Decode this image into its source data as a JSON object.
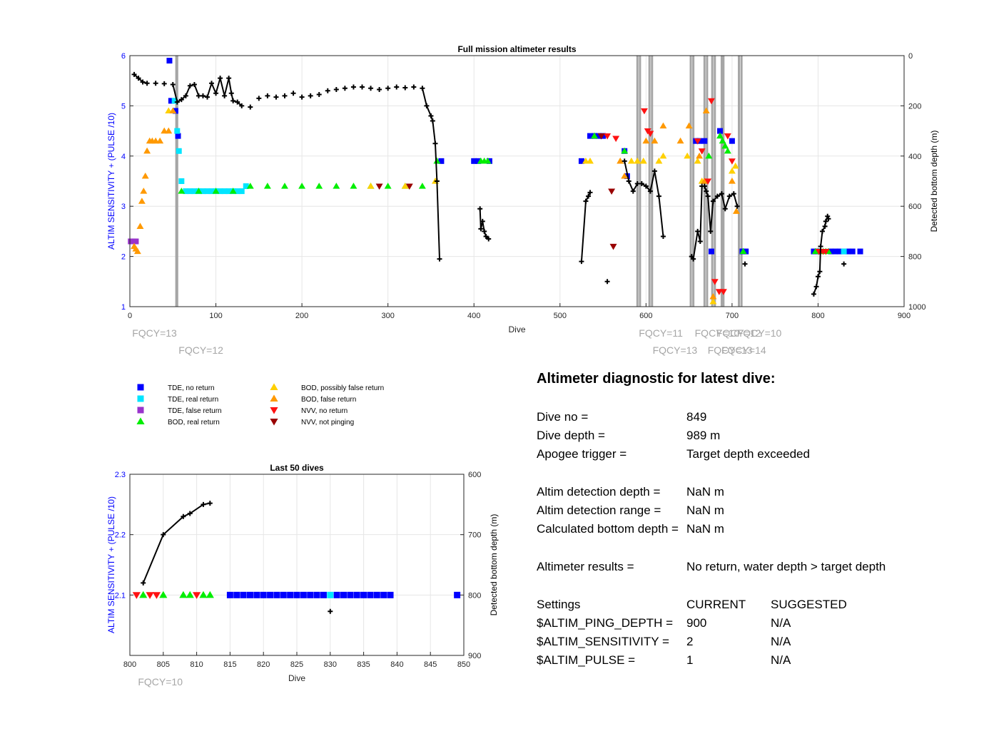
{
  "chart_data": [
    {
      "type": "scatter",
      "title": "Full mission altimeter results",
      "xlabel": "Dive",
      "ylabel": "ALTIM SENSITIVITY + (PULSE /10)",
      "y2label": "Detected bottom depth (m)",
      "xlim": [
        0,
        900
      ],
      "ylim": [
        1,
        6
      ],
      "y2lim": [
        1000,
        0
      ],
      "xticks": [
        0,
        100,
        200,
        300,
        400,
        500,
        600,
        700,
        800,
        900
      ],
      "yticks": [
        1,
        2,
        3,
        4,
        5,
        6
      ],
      "y2ticks": [
        0,
        200,
        400,
        600,
        800,
        1000
      ],
      "grid": true,
      "fqcy_lines": [
        54,
        55,
        590,
        593,
        604,
        607,
        652,
        655,
        668,
        671,
        677,
        680,
        688,
        690,
        708,
        711
      ],
      "fqcy_labels": [
        {
          "dive": 1,
          "row": 1,
          "text": "FQCY=13"
        },
        {
          "dive": 55,
          "row": 2,
          "text": "FQCY=12"
        },
        {
          "dive": 590,
          "row": 1,
          "text": "FQCY=11"
        },
        {
          "dive": 606,
          "row": 2,
          "text": "FQCY=13"
        },
        {
          "dive": 655,
          "row": 1,
          "text": "FQCY=10"
        },
        {
          "dive": 670,
          "row": 2,
          "text": "FQCY=13"
        },
        {
          "dive": 680,
          "row": 1,
          "text": "FQCY=12"
        },
        {
          "dive": 686,
          "row": 2,
          "text": "FQCY=14"
        },
        {
          "dive": 704,
          "row": 1,
          "text": "FQCY=10"
        }
      ],
      "series": [
        {
          "name": "TDE, no return",
          "marker": "square",
          "color": "#0000ff",
          "x": [
            46,
            48,
            53,
            56,
            362,
            400,
            405,
            418,
            525,
            535,
            540,
            545,
            550,
            575,
            578,
            658,
            662,
            668,
            676,
            686,
            700,
            712,
            716,
            795,
            800,
            815,
            820,
            825,
            830,
            835,
            840,
            849
          ],
          "y": [
            5.9,
            5.1,
            4.9,
            4.4,
            3.9,
            3.9,
            3.9,
            3.9,
            3.9,
            4.4,
            4.4,
            4.4,
            4.4,
            4.1,
            3.6,
            4.3,
            4.3,
            4.3,
            2.1,
            4.5,
            4.3,
            2.1,
            2.1,
            2.1,
            2.1,
            2.1,
            2.1,
            2.1,
            2.1,
            2.1,
            2.1,
            2.1
          ]
        },
        {
          "name": "TDE, real return",
          "marker": "square",
          "color": "#00e5ff",
          "x": [
            52,
            55,
            57,
            60,
            65,
            70,
            75,
            80,
            85,
            90,
            95,
            100,
            105,
            110,
            115,
            120,
            125,
            130,
            135,
            830
          ],
          "y": [
            5.1,
            4.5,
            4.1,
            3.5,
            3.3,
            3.3,
            3.3,
            3.3,
            3.3,
            3.3,
            3.3,
            3.3,
            3.3,
            3.3,
            3.3,
            3.3,
            3.3,
            3.3,
            3.4,
            2.1
          ]
        },
        {
          "name": "TDE, false return",
          "marker": "square",
          "color": "#9933cc",
          "x": [
            1,
            3,
            5,
            7
          ],
          "y": [
            2.3,
            2.3,
            2.3,
            2.3
          ]
        },
        {
          "name": "BOD, real return",
          "marker": "triangle-up",
          "color": "#00ee00",
          "x": [
            60,
            80,
            100,
            120,
            140,
            160,
            180,
            200,
            220,
            240,
            260,
            280,
            300,
            320,
            340,
            357,
            408,
            412,
            416,
            540,
            575,
            673,
            686,
            689,
            692,
            695,
            713,
            797,
            800,
            803,
            806,
            809,
            812
          ],
          "y": [
            3.3,
            3.3,
            3.3,
            3.3,
            3.4,
            3.4,
            3.4,
            3.4,
            3.4,
            3.4,
            3.4,
            3.4,
            3.4,
            3.4,
            3.4,
            3.9,
            3.9,
            3.9,
            3.9,
            4.4,
            4.1,
            4.0,
            4.4,
            4.3,
            4.2,
            4.1,
            2.1,
            2.1,
            2.1,
            2.1,
            2.1,
            2.1,
            2.1
          ]
        },
        {
          "name": "BOD, possibly false return",
          "marker": "triangle-up",
          "color": "#ffd000",
          "x": [
            45,
            280,
            320,
            355,
            530,
            535,
            583,
            590,
            597,
            615,
            620,
            648,
            660,
            665,
            678,
            700,
            704
          ],
          "y": [
            4.9,
            3.4,
            3.4,
            3.5,
            3.9,
            3.9,
            3.9,
            3.9,
            3.9,
            3.9,
            4.0,
            4.0,
            3.9,
            3.5,
            1.1,
            3.7,
            3.8
          ]
        },
        {
          "name": "BOD, false return",
          "marker": "triangle-up",
          "color": "#ff9900",
          "x": [
            5,
            7,
            9,
            12,
            14,
            16,
            18,
            20,
            23,
            26,
            30,
            35,
            40,
            45,
            50,
            570,
            575,
            600,
            610,
            620,
            640,
            650,
            662,
            668,
            670,
            678,
            700,
            705
          ],
          "y": [
            2.2,
            2.15,
            2.1,
            2.6,
            3.1,
            3.3,
            3.6,
            4.1,
            4.3,
            4.3,
            4.3,
            4.3,
            4.5,
            4.5,
            4.9,
            3.9,
            3.6,
            4.3,
            4.3,
            4.6,
            4.3,
            4.6,
            4.0,
            3.5,
            4.9,
            1.2,
            3.5,
            2.9
          ]
        },
        {
          "name": "NVV, no return",
          "marker": "triangle-down",
          "color": "#ff1111",
          "x": [
            555,
            565,
            598,
            602,
            605,
            660,
            665,
            672,
            676,
            680,
            685,
            690,
            695,
            700,
            801,
            803,
            806,
            809
          ],
          "y": [
            4.4,
            4.35,
            4.9,
            4.5,
            4.45,
            4.3,
            4.1,
            3.5,
            5.1,
            1.5,
            1.3,
            1.3,
            4.4,
            3.9,
            2.1,
            2.1,
            2.1,
            2.1
          ]
        },
        {
          "name": "NVV, not pinging",
          "marker": "triangle-down",
          "color": "#990000",
          "x": [
            290,
            325,
            548,
            560,
            562
          ],
          "y": [
            3.4,
            3.4,
            4.4,
            3.3,
            2.2
          ]
        },
        {
          "name": "Detected bottom depth",
          "marker": "plus",
          "color": "#000000",
          "axis": "right",
          "x": [
            5,
            10,
            15,
            20,
            30,
            40,
            50,
            55,
            60,
            65,
            70,
            75,
            80,
            85,
            90,
            95,
            100,
            105,
            110,
            115,
            118,
            120,
            125,
            130,
            140,
            150,
            160,
            170,
            180,
            190,
            200,
            210,
            220,
            230,
            240,
            250,
            260,
            270,
            280,
            290,
            300,
            310,
            320,
            330,
            340,
            345,
            350,
            352,
            355,
            357,
            360,
            407,
            408,
            410,
            412,
            414,
            417,
            525,
            530,
            533,
            535,
            555,
            575,
            580,
            585,
            590,
            595,
            600,
            605,
            610,
            615,
            620,
            653,
            655,
            660,
            663,
            665,
            668,
            670,
            672,
            675,
            678,
            683,
            688,
            692,
            697,
            702,
            706,
            715,
            795,
            798,
            800,
            802,
            803,
            805,
            808,
            809,
            811,
            812,
            830
          ],
          "y": [
            75,
            90,
            105,
            110,
            110,
            112,
            115,
            185,
            175,
            160,
            120,
            115,
            160,
            160,
            165,
            110,
            150,
            90,
            160,
            90,
            150,
            180,
            185,
            200,
            205,
            170,
            160,
            165,
            160,
            150,
            165,
            160,
            155,
            140,
            135,
            130,
            125,
            125,
            130,
            135,
            130,
            125,
            128,
            125,
            130,
            200,
            240,
            260,
            350,
            500,
            810,
            610,
            690,
            660,
            700,
            720,
            730,
            820,
            580,
            560,
            545,
            900,
            420,
            500,
            540,
            510,
            510,
            520,
            540,
            460,
            560,
            720,
            800,
            810,
            700,
            740,
            520,
            520,
            540,
            560,
            700,
            580,
            560,
            550,
            610,
            560,
            550,
            600,
            830,
            950,
            920,
            880,
            860,
            760,
            700,
            680,
            660,
            640,
            650,
            830
          ]
        }
      ]
    },
    {
      "type": "scatter",
      "title": "Last 50 dives",
      "xlabel": "Dive",
      "ylabel": "ALTIM SENSITIVITY + (PULSE /10)",
      "y2label": "Detected bottom depth (m)",
      "xlim": [
        800,
        850
      ],
      "ylim": [
        2.0,
        2.3
      ],
      "y2lim": [
        900,
        600
      ],
      "xticks": [
        800,
        805,
        810,
        815,
        820,
        825,
        830,
        835,
        840,
        845,
        850
      ],
      "yticks": [
        2.1,
        2.2,
        2.3
      ],
      "y2ticks": [
        600,
        700,
        800,
        900
      ],
      "grid": true,
      "fqcy_labels": [
        {
          "dive": 801,
          "row": 1,
          "text": "FQCY=10"
        }
      ],
      "series": [
        {
          "name": "TDE, no return",
          "marker": "square",
          "color": "#0000ff",
          "x": [
            815,
            816,
            817,
            818,
            819,
            820,
            821,
            822,
            823,
            824,
            825,
            826,
            827,
            828,
            829,
            831,
            832,
            833,
            834,
            835,
            836,
            837,
            838,
            839,
            849
          ],
          "y": [
            2.1,
            2.1,
            2.1,
            2.1,
            2.1,
            2.1,
            2.1,
            2.1,
            2.1,
            2.1,
            2.1,
            2.1,
            2.1,
            2.1,
            2.1,
            2.1,
            2.1,
            2.1,
            2.1,
            2.1,
            2.1,
            2.1,
            2.1,
            2.1,
            2.1
          ]
        },
        {
          "name": "TDE, real return",
          "marker": "square",
          "color": "#00e5ff",
          "x": [
            830
          ],
          "y": [
            2.1
          ]
        },
        {
          "name": "BOD, real return",
          "marker": "triangle-up",
          "color": "#00ee00",
          "x": [
            802,
            805,
            808,
            809,
            811,
            812
          ],
          "y": [
            2.1,
            2.1,
            2.1,
            2.1,
            2.1,
            2.1
          ]
        },
        {
          "name": "NVV, no return",
          "marker": "triangle-down",
          "color": "#ff1111",
          "x": [
            801,
            803,
            804,
            810
          ],
          "y": [
            2.1,
            2.1,
            2.1,
            2.1
          ]
        },
        {
          "name": "Detected bottom depth",
          "marker": "plus",
          "color": "#000000",
          "axis": "right",
          "x": [
            802,
            805,
            808,
            809,
            811,
            812,
            830
          ],
          "y": [
            780,
            700,
            670,
            665,
            650,
            648,
            827
          ]
        }
      ]
    }
  ],
  "legend": {
    "entries": [
      {
        "label": "TDE, no return",
        "marker": "square",
        "color": "#0000ff"
      },
      {
        "label": "TDE, real return",
        "marker": "square",
        "color": "#00e5ff"
      },
      {
        "label": "TDE, false return",
        "marker": "square",
        "color": "#9933cc"
      },
      {
        "label": "BOD, real return",
        "marker": "triangle-up",
        "color": "#00ee00"
      },
      {
        "label": "BOD, possibly false return",
        "marker": "triangle-up",
        "color": "#ffd000"
      },
      {
        "label": "BOD, false return",
        "marker": "triangle-up",
        "color": "#ff9900"
      },
      {
        "label": "NVV, no return",
        "marker": "triangle-down",
        "color": "#ff1111"
      },
      {
        "label": "NVV, not pinging",
        "marker": "triangle-down",
        "color": "#990000"
      }
    ]
  },
  "diagnostic": {
    "title": "Altimeter diagnostic for latest dive:",
    "dive_no_label": "Dive no =",
    "dive_no": "849",
    "dive_depth_label": "Dive depth =",
    "dive_depth": "989 m",
    "apogee_label": "Apogee trigger =",
    "apogee": "Target depth exceeded",
    "detect_depth_label": "Altim detection depth =",
    "detect_depth": "NaN m",
    "detect_range_label": "Altim detection range =",
    "detect_range": "NaN m",
    "calc_bottom_label": "Calculated bottom depth =",
    "calc_bottom": "NaN m",
    "results_label": "Altimeter results =",
    "results": "No return, water depth > target depth",
    "settings_label": "Settings",
    "current_label": "CURRENT",
    "suggested_label": "SUGGESTED",
    "ping_depth_label": "$ALTIM_PING_DEPTH =",
    "ping_depth_current": "900",
    "ping_depth_suggested": "N/A",
    "sensitivity_label": "$ALTIM_SENSITIVITY =",
    "sensitivity_current": "2",
    "sensitivity_suggested": "N/A",
    "pulse_label": "$ALTIM_PULSE =",
    "pulse_current": "1",
    "pulse_suggested": "N/A"
  }
}
